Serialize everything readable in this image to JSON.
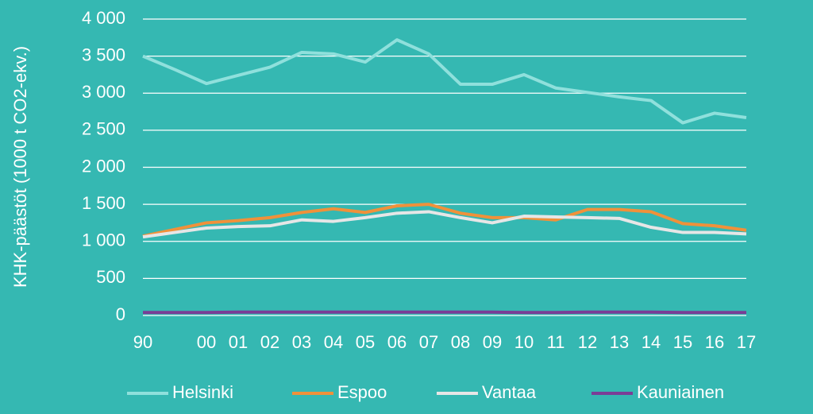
{
  "chart_data": {
    "type": "line",
    "y_label": "KHK-päästöt (1000 t CO2-ekv.)",
    "categories": [
      "90",
      null,
      "00",
      "01",
      "02",
      "03",
      "04",
      "05",
      "06",
      "07",
      "08",
      "09",
      "10",
      "11",
      "12",
      "13",
      "14",
      "15",
      "16",
      "17"
    ],
    "series": [
      {
        "name": "Helsinki",
        "color": "#8fe0dc",
        "values": [
          3500,
          3320,
          3130,
          3240,
          3350,
          3550,
          3530,
          3420,
          3720,
          3530,
          3120,
          3120,
          3250,
          3070,
          3010,
          2950,
          2900,
          2600,
          2730,
          2670
        ]
      },
      {
        "name": "Espoo",
        "color": "#f0913a",
        "values": [
          1070,
          1160,
          1250,
          1280,
          1320,
          1390,
          1440,
          1390,
          1480,
          1500,
          1380,
          1320,
          1320,
          1290,
          1430,
          1430,
          1400,
          1240,
          1210,
          1150
        ]
      },
      {
        "name": "Vantaa",
        "color": "#e6e6e6",
        "values": [
          1060,
          1120,
          1180,
          1200,
          1210,
          1290,
          1270,
          1320,
          1380,
          1400,
          1320,
          1250,
          1340,
          1330,
          1320,
          1310,
          1190,
          1120,
          1120,
          1100
        ]
      },
      {
        "name": "Kauniainen",
        "color": "#7a3d96",
        "values": [
          40,
          40,
          40,
          45,
          45,
          45,
          45,
          45,
          45,
          45,
          45,
          45,
          40,
          40,
          45,
          45,
          45,
          40,
          40,
          40
        ]
      }
    ],
    "ylim": [
      0,
      4000
    ],
    "yticks": [
      0,
      500,
      {
        "value": 1000,
        "label": "1 000"
      },
      {
        "value": 1500,
        "label": "1 500"
      },
      {
        "value": 2000,
        "label": "2 000"
      },
      {
        "value": 2500,
        "label": "2 500"
      },
      {
        "value": 3000,
        "label": "3 000"
      },
      {
        "value": 3500,
        "label": "3 500"
      },
      {
        "value": 4000,
        "label": "4 000"
      }
    ],
    "grid": true,
    "legend": "bottom"
  }
}
